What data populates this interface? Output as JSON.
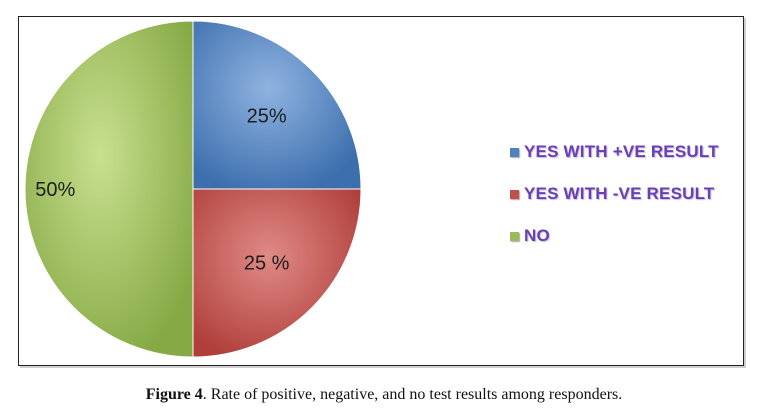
{
  "chart_data": {
    "type": "pie",
    "slices": [
      {
        "label": "YES WITH +VE RESULT",
        "value": 25,
        "display": "25%",
        "color": "#4f81bd"
      },
      {
        "label": "YES WITH -VE RESULT",
        "value": 25,
        "display": "25 %",
        "color": "#c0504d"
      },
      {
        "label": "NO",
        "value": 50,
        "display": "50%",
        "color": "#9bbb59"
      }
    ],
    "legend_position": "right",
    "title": ""
  },
  "caption": {
    "figure_label": "Figure 4",
    "text": ". Rate of positive, negative, and no test results among responders."
  }
}
